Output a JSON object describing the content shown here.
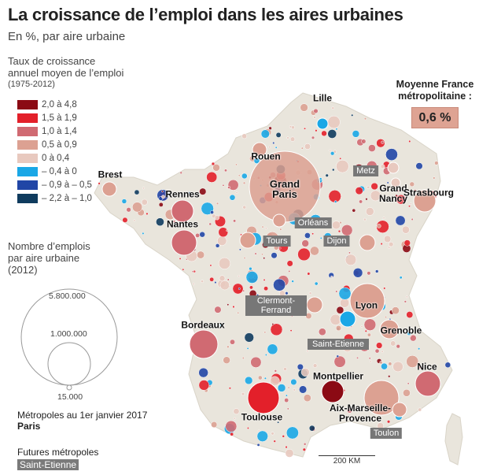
{
  "title": "La croissance de l’emploi dans les aires urbaines",
  "subtitle": "En %, par aire urbaine",
  "legend": {
    "title_lines": [
      "Taux de croissance",
      "annuel moyen de l’emploi",
      "(1975-2012)"
    ],
    "classes": [
      {
        "label": "2,0 à 4,8",
        "color": "#8b0a14"
      },
      {
        "label": "1,5 à 1,9",
        "color": "#e3202a"
      },
      {
        "label": "1,0 à 1,4",
        "color": "#d06a72"
      },
      {
        "label": "0,5 à 0,9",
        "color": "#dca192"
      },
      {
        "label": "0 à 0,4",
        "color": "#e8c9bf"
      },
      {
        "label": "– 0,4 à 0",
        "color": "#1aa7e6"
      },
      {
        "label": "– 0,9 à – 0,5",
        "color": "#2146a6"
      },
      {
        "label": "– 2,2 à – 1,0",
        "color": "#0f3b5e"
      }
    ],
    "size_title_lines": [
      "Nombre d’emplois",
      "par aire urbaine",
      "(2012)"
    ],
    "sizes": [
      "5.800.000",
      "1.000.000",
      "15.000"
    ],
    "metropoles_label": "Métropoles au 1er janvier 2017",
    "metropoles_example": "Paris",
    "futures_label": "Futures métropoles",
    "futures_example": "Saint-Etienne"
  },
  "average": {
    "label_lines": [
      "Moyenne France",
      "métropolitaine :"
    ],
    "value": "0,6 %"
  },
  "scale": "200 KM",
  "cities": [
    {
      "name": "Lille",
      "type": "metropole",
      "class": 5
    },
    {
      "name": "Rouen",
      "type": "metropole",
      "class": 3
    },
    {
      "name": "Grand Paris",
      "type": "metropole",
      "class": 3
    },
    {
      "name": "Brest",
      "type": "metropole",
      "class": 3
    },
    {
      "name": "Rennes",
      "type": "metropole",
      "class": 2
    },
    {
      "name": "Nantes",
      "type": "metropole",
      "class": 2
    },
    {
      "name": "Orléans",
      "type": "future",
      "class": 3
    },
    {
      "name": "Tours",
      "type": "future",
      "class": 3
    },
    {
      "name": "Dijon",
      "type": "future",
      "class": 3
    },
    {
      "name": "Metz",
      "type": "future",
      "class": 4
    },
    {
      "name": "Grand Nancy",
      "type": "metropole",
      "class": 4
    },
    {
      "name": "Strasbourg",
      "type": "metropole",
      "class": 3
    },
    {
      "name": "Clermont-Ferrand",
      "type": "future",
      "class": 3
    },
    {
      "name": "Lyon",
      "type": "metropole",
      "class": 3
    },
    {
      "name": "Saint-Etienne",
      "type": "future",
      "class": 5
    },
    {
      "name": "Grenoble",
      "type": "metropole",
      "class": 3
    },
    {
      "name": "Bordeaux",
      "type": "metropole",
      "class": 2
    },
    {
      "name": "Toulouse",
      "type": "metropole",
      "class": 1
    },
    {
      "name": "Montpellier",
      "type": "metropole",
      "class": 0
    },
    {
      "name": "Nice",
      "type": "metropole",
      "class": 2
    },
    {
      "name": "Aix-Marseille-Provence",
      "type": "metropole",
      "class": 3
    },
    {
      "name": "Toulon",
      "type": "future",
      "class": 3
    }
  ]
}
